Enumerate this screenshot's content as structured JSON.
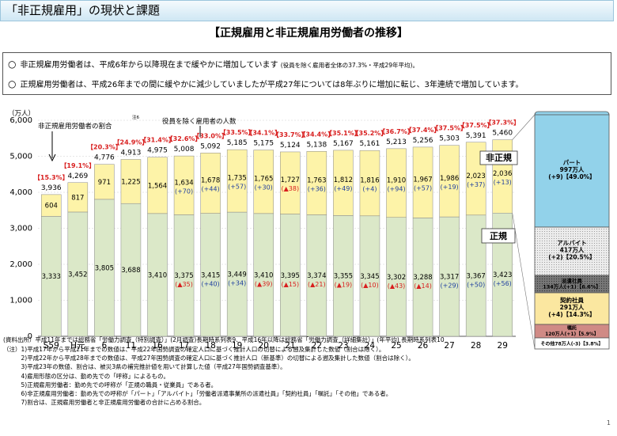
{
  "page": {
    "title": "「非正規雇用」の現状と課題",
    "subtitle": "【正規雇用と非正規雇用労働者の推移】",
    "page_number": "1"
  },
  "summary": {
    "line1": "非正規雇用労働者は、平成6年から以降現在まで緩やかに増加しています",
    "line1_note": "(役員を除く雇用者全体の37.3%・平成29年平均)。",
    "line2": "正規雇用労働者は、平成26年までの間に緩やかに減少していましたが平成27年については8年ぶりに増加に転じ、3年連続で増加しています。"
  },
  "chart_data": {
    "type": "bar",
    "stacked": true,
    "y_unit_label": "（万人）",
    "ylim": [
      0,
      6000
    ],
    "yticks": [
      "0",
      "1,000",
      "2,000",
      "3,000",
      "4,000",
      "5,000",
      "6,000"
    ],
    "categories": [
      "S59",
      "H元",
      "6",
      "11",
      "16",
      "17",
      "18",
      "19",
      "20",
      "21",
      "22",
      "23",
      "24",
      "25",
      "26",
      "27",
      "28",
      "29"
    ],
    "series": [
      {
        "name": "正規",
        "color": "#dbe8c8",
        "values": [
          3333,
          3452,
          3805,
          3688,
          3410,
          3375,
          3415,
          3449,
          3410,
          3395,
          3374,
          3355,
          3345,
          3302,
          3288,
          3317,
          3367,
          3423
        ],
        "labels": [
          "3,333",
          "3,452",
          "3,805",
          "3,688",
          "3,410",
          "3,375",
          "3,415",
          "3,449",
          "3,410",
          "3,395",
          "3,374",
          "3,355",
          "3,345",
          "3,302",
          "3,288",
          "3,317",
          "3,367",
          "3,423"
        ],
        "changes": [
          "",
          "",
          "",
          "",
          "",
          "(▲35)",
          "(+40)",
          "(+34)",
          "(▲39)",
          "(▲15)",
          "(▲21)",
          "(▲19)",
          "(▲10)",
          "(▲43)",
          "(▲14)",
          "(+29)",
          "(+50)",
          "(+56)"
        ]
      },
      {
        "name": "非正規",
        "color": "#fdf3a8",
        "values": [
          604,
          817,
          971,
          1225,
          1564,
          1634,
          1678,
          1735,
          1765,
          1727,
          1763,
          1812,
          1816,
          1910,
          1967,
          1986,
          2023,
          2036
        ],
        "labels": [
          "604",
          "817",
          "971",
          "1,225",
          "1,564",
          "1,634",
          "1,678",
          "1,735",
          "1,765",
          "1,727",
          "1,763",
          "1,812",
          "1,816",
          "1,910",
          "1,967",
          "1,986",
          "2,023",
          "2,036"
        ],
        "changes": [
          "",
          "",
          "",
          "",
          "",
          "(+70)",
          "(+44)",
          "(+57)",
          "(+30)",
          "(▲38)",
          "(+36)",
          "(+49)",
          "(+4)",
          "(+94)",
          "(+57)",
          "(+19)",
          "(+37)",
          "(+13)"
        ]
      }
    ],
    "totals": [
      "3,936",
      "4,269",
      "4,776",
      "4,913",
      "4,975",
      "5,008",
      "5,092",
      "5,185",
      "5,175",
      "5,124",
      "5,138",
      "5,167",
      "5,161",
      "5,213",
      "5,256",
      "5,303",
      "5,391",
      "5,460"
    ],
    "ratios": [
      "【15.3%】",
      "【19.1%】",
      "【20.3%】",
      "【24.9%】",
      "【31.4%】",
      "【32.6%】",
      "【33.0%】",
      "【33.5%】",
      "【34.1%】",
      "【33.7%】",
      "【34.4%】",
      "【35.1%】",
      "【35.2%】",
      "【36.7%】",
      "【37.4%】",
      "【37.5%】",
      "【37.5%】",
      "【37.3%】"
    ],
    "annotations": {
      "ratio_label": "非正規雇用労働者の割合",
      "note6_marker": "注6",
      "total_label": "役員を除く雇用者の人数",
      "nonregular_tag": "非正規",
      "regular_tag": "正規"
    },
    "breakdown": [
      {
        "name": "パート",
        "value_text": "997万人",
        "change_text": "(+9)【49.0%】",
        "color": "#92d2ea"
      },
      {
        "name": "アルバイト",
        "value_text": "417万人",
        "change_text": "(+2)【20.5%】",
        "color": "#dcdcdc",
        "pattern": true
      },
      {
        "name": "派遣社員",
        "value_text": "134万人(+1)【6.6%】",
        "change_text": "",
        "color": "#8a8a8a",
        "pattern": true
      },
      {
        "name": "契約社員",
        "value_text": "291万人",
        "change_text": "(+4)【14.3%】",
        "color": "#fbe7a0"
      },
      {
        "name": "嘱託",
        "value_text": "120万人(+1)【5.9%】",
        "change_text": "",
        "color": "#d08a85"
      },
      {
        "name": "その他",
        "value_text": "その他78万人(-3)【3.8%】",
        "change_text": "",
        "color": "#ffffff"
      }
    ]
  },
  "source": "(資料出所）平成11年までは総務省「労働力調査（特別調査）」(2月調査)長期時系列表9、平成16年以降は総務省「労働力調査（詳細集計）」(年平均) 長期時系列表10",
  "footnotes": [
    "（注）1)平成17年から平成21年までの数値は、平成22年国勢調査の確定人口に基づく推計人口の切替による遡及集計した数値（割合は除く）。",
    "　　　2)平成22年から平成28年までの数値は、平成27年国勢調査の確定人口に基づく推計人口（新基準）の切替による遡及集計した数値（割合は除く）。",
    "　　　3)平成23年の数値、割合は、被災3県の補完推計値を用いて計算した値（平成27年国勢調査基準）。",
    "　　　4)雇用形態の区分は、勤め先での「呼称」によるもの。",
    "　　　5)正規雇用労働者：勤め先での呼称が「正規の職員・従業員」である者。",
    "　　　6)非正規雇用労働者：勤め先での呼称が「パート」「アルバイト」「労働者派遣事業所の派遣社員」「契約社員」「嘱託」「その他」である者。",
    "　　　7)割合は、正規雇用労働者と非正規雇用労働者の合計に占める割合。"
  ]
}
